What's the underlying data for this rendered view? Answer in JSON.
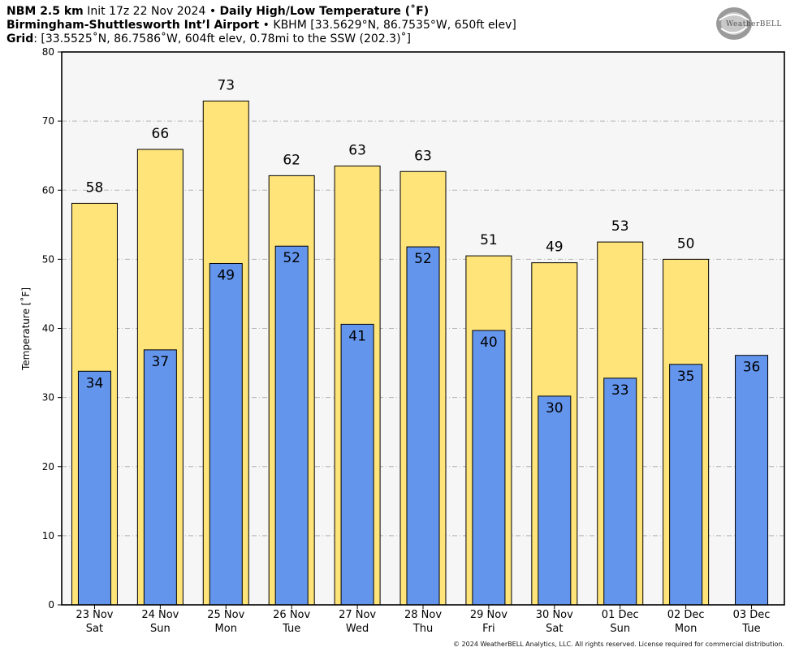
{
  "header": {
    "model": "NBM 2.5 km",
    "init": "Init 17z 22 Nov 2024",
    "separator": "•",
    "product": "Daily High/Low Temperature (˚F)",
    "station_name": "Birmingham-Shuttlesworth Int’l Airport",
    "station_info": "KBHM [33.5629°N, 86.7535°W, 650ft elev]",
    "grid_label": "Grid",
    "grid_info": ": [33.5525˚N, 86.7586˚W, 604ft elev, 0.78mi to the SSW (202.3)˚]"
  },
  "logo": {
    "text": "WeatherBELL"
  },
  "copyright": "© 2024 WeatherBELL Analytics, LLC. All rights reserved. License required for commercial distribution.",
  "chart_data": {
    "type": "bar",
    "ylabel": "Temperature [˚F]",
    "ylim": [
      0,
      80
    ],
    "yticks": [
      0,
      10,
      20,
      30,
      40,
      50,
      60,
      70,
      80
    ],
    "grid": true,
    "categories": [
      {
        "date": "23 Nov",
        "day": "Sat"
      },
      {
        "date": "24 Nov",
        "day": "Sun"
      },
      {
        "date": "25 Nov",
        "day": "Mon"
      },
      {
        "date": "26 Nov",
        "day": "Tue"
      },
      {
        "date": "27 Nov",
        "day": "Wed"
      },
      {
        "date": "28 Nov",
        "day": "Thu"
      },
      {
        "date": "29 Nov",
        "day": "Fri"
      },
      {
        "date": "30 Nov",
        "day": "Sat"
      },
      {
        "date": "01 Dec",
        "day": "Sun"
      },
      {
        "date": "02 Dec",
        "day": "Mon"
      },
      {
        "date": "03 Dec",
        "day": "Tue"
      }
    ],
    "series": [
      {
        "role": "high",
        "color": "#ffe47a",
        "values": [
          58.1,
          65.9,
          72.9,
          62.1,
          63.5,
          62.7,
          50.5,
          49.5,
          52.5,
          50.0,
          null
        ],
        "labels": [
          "58",
          "66",
          "73",
          "62",
          "63",
          "63",
          "51",
          "49",
          "53",
          "50",
          ""
        ]
      },
      {
        "role": "low",
        "color": "#6495ed",
        "values": [
          33.8,
          36.9,
          49.4,
          51.9,
          40.6,
          51.8,
          39.7,
          30.2,
          32.8,
          34.8,
          36.1
        ],
        "labels": [
          "34",
          "37",
          "49",
          "52",
          "41",
          "52",
          "40",
          "30",
          "33",
          "35",
          "36"
        ]
      }
    ]
  }
}
